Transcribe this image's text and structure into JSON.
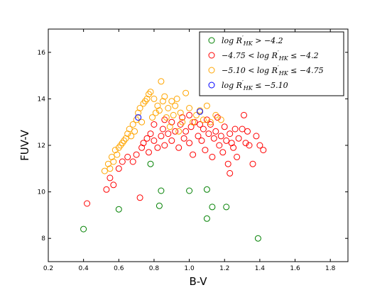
{
  "chart_data": {
    "type": "scatter",
    "title": "",
    "xlabel": "B-V",
    "ylabel": "FUV-V",
    "xlim": [
      0.2,
      1.9
    ],
    "ylim": [
      7,
      17.0
    ],
    "xticks": [
      "0.2",
      "0.4",
      "0.6",
      "0.8",
      "1.0",
      "1.2",
      "1.4",
      "1.6",
      "1.8"
    ],
    "yticks": [
      "8",
      "10",
      "12",
      "14",
      "16"
    ],
    "grid": false,
    "legend_position": "top-right",
    "series": [
      {
        "name": "log R'HK > −4.2",
        "label_parts": {
          "pre": "log R",
          "sup": "′",
          "sub": "HK",
          "post": " > −4.2"
        },
        "color": "#008000",
        "points": [
          [
            0.4,
            8.4
          ],
          [
            0.6,
            9.25
          ],
          [
            0.78,
            11.2
          ],
          [
            0.84,
            10.05
          ],
          [
            0.83,
            9.4
          ],
          [
            1.0,
            10.05
          ],
          [
            1.1,
            10.1
          ],
          [
            1.1,
            8.85
          ],
          [
            1.13,
            9.35
          ],
          [
            1.21,
            9.35
          ],
          [
            1.39,
            8.0
          ]
        ]
      },
      {
        "name": "−4.75 < log R'HK ≤ −4.2",
        "label_parts": {
          "pre": "−4.75 < log R",
          "sup": "′",
          "sub": "HK",
          "post": " ≤ −4.2"
        },
        "color": "#ff0000",
        "points": [
          [
            0.42,
            9.5
          ],
          [
            0.53,
            10.1
          ],
          [
            0.55,
            10.6
          ],
          [
            0.57,
            10.3
          ],
          [
            0.6,
            11.0
          ],
          [
            0.62,
            11.3
          ],
          [
            0.65,
            11.5
          ],
          [
            0.68,
            11.3
          ],
          [
            0.7,
            11.6
          ],
          [
            0.72,
            9.75
          ],
          [
            0.73,
            11.9
          ],
          [
            0.74,
            12.1
          ],
          [
            0.76,
            12.3
          ],
          [
            0.77,
            11.7
          ],
          [
            0.78,
            12.5
          ],
          [
            0.8,
            12.2
          ],
          [
            0.82,
            11.9
          ],
          [
            0.84,
            12.4
          ],
          [
            0.85,
            12.7
          ],
          [
            0.86,
            12.0
          ],
          [
            0.88,
            12.5
          ],
          [
            0.9,
            12.2
          ],
          [
            0.92,
            12.6
          ],
          [
            0.94,
            11.9
          ],
          [
            0.95,
            12.9
          ],
          [
            0.97,
            12.3
          ],
          [
            0.98,
            12.6
          ],
          [
            1.0,
            12.1
          ],
          [
            1.01,
            12.8
          ],
          [
            1.02,
            11.6
          ],
          [
            1.03,
            13.0
          ],
          [
            1.05,
            12.4
          ],
          [
            1.06,
            12.9
          ],
          [
            1.07,
            12.2
          ],
          [
            1.08,
            12.7
          ],
          [
            1.09,
            11.8
          ],
          [
            1.1,
            13.1
          ],
          [
            1.11,
            12.5
          ],
          [
            1.12,
            12.9
          ],
          [
            1.13,
            11.5
          ],
          [
            1.14,
            12.3
          ],
          [
            1.15,
            12.6
          ],
          [
            1.16,
            13.2
          ],
          [
            1.17,
            12.0
          ],
          [
            1.18,
            12.4
          ],
          [
            1.19,
            11.7
          ],
          [
            1.2,
            12.8
          ],
          [
            1.21,
            12.2
          ],
          [
            1.22,
            11.2
          ],
          [
            1.23,
            12.5
          ],
          [
            1.24,
            12.1
          ],
          [
            1.25,
            11.9
          ],
          [
            1.26,
            12.7
          ],
          [
            1.27,
            11.5
          ],
          [
            1.28,
            12.3
          ],
          [
            1.3,
            12.7
          ],
          [
            1.31,
            13.3
          ],
          [
            1.32,
            12.1
          ],
          [
            1.33,
            12.6
          ],
          [
            1.34,
            12.0
          ],
          [
            1.36,
            11.2
          ],
          [
            1.38,
            12.4
          ],
          [
            1.4,
            12.0
          ],
          [
            1.42,
            11.8
          ],
          [
            1.23,
            10.8
          ],
          [
            0.9,
            13.0
          ],
          [
            0.96,
            13.2
          ],
          [
            1.0,
            13.3
          ],
          [
            0.86,
            13.1
          ],
          [
            0.8,
            12.9
          ]
        ]
      },
      {
        "name": "−5.10 < log R'HK ≤ −4.75",
        "label_parts": {
          "pre": "−5.10 < log R",
          "sup": "′",
          "sub": "HK",
          "post": " ≤ −4.75"
        },
        "color": "#ffa500",
        "points": [
          [
            0.52,
            10.9
          ],
          [
            0.54,
            11.2
          ],
          [
            0.56,
            11.5
          ],
          [
            0.58,
            11.8
          ],
          [
            0.6,
            11.9
          ],
          [
            0.62,
            12.1
          ],
          [
            0.64,
            12.3
          ],
          [
            0.65,
            12.5
          ],
          [
            0.66,
            12.7
          ],
          [
            0.68,
            12.9
          ],
          [
            0.7,
            13.1
          ],
          [
            0.71,
            13.4
          ],
          [
            0.72,
            13.6
          ],
          [
            0.74,
            13.8
          ],
          [
            0.75,
            13.9
          ],
          [
            0.76,
            14.0
          ],
          [
            0.77,
            14.2
          ],
          [
            0.78,
            14.3
          ],
          [
            0.8,
            14.0
          ],
          [
            0.82,
            13.7
          ],
          [
            0.83,
            13.5
          ],
          [
            0.84,
            14.75
          ],
          [
            0.85,
            13.9
          ],
          [
            0.86,
            14.1
          ],
          [
            0.87,
            13.2
          ],
          [
            0.88,
            13.6
          ],
          [
            0.9,
            13.9
          ],
          [
            0.91,
            13.3
          ],
          [
            0.92,
            13.7
          ],
          [
            0.93,
            14.0
          ],
          [
            0.95,
            13.4
          ],
          [
            0.96,
            13.0
          ],
          [
            0.98,
            14.25
          ],
          [
            1.0,
            13.6
          ],
          [
            1.02,
            13.0
          ],
          [
            1.04,
            13.3
          ],
          [
            1.06,
            13.5
          ],
          [
            1.08,
            13.1
          ],
          [
            1.1,
            13.7
          ],
          [
            1.12,
            13.0
          ],
          [
            1.15,
            13.3
          ],
          [
            1.18,
            13.1
          ],
          [
            0.55,
            11.0
          ],
          [
            0.57,
            11.3
          ],
          [
            0.59,
            11.6
          ],
          [
            0.61,
            12.0
          ],
          [
            0.63,
            12.2
          ],
          [
            0.67,
            12.4
          ],
          [
            0.69,
            12.6
          ],
          [
            0.73,
            13.0
          ],
          [
            0.79,
            13.2
          ],
          [
            0.81,
            13.4
          ],
          [
            0.89,
            12.8
          ],
          [
            0.94,
            12.6
          ]
        ]
      },
      {
        "name": "log R'HK ≤ −5.10",
        "label_parts": {
          "pre": "log R",
          "sup": "′",
          "sub": "HK",
          "post": " ≤ −5.10"
        },
        "color": "#0000ff",
        "points": [
          [
            0.71,
            13.2
          ],
          [
            1.06,
            13.45
          ]
        ]
      }
    ]
  }
}
